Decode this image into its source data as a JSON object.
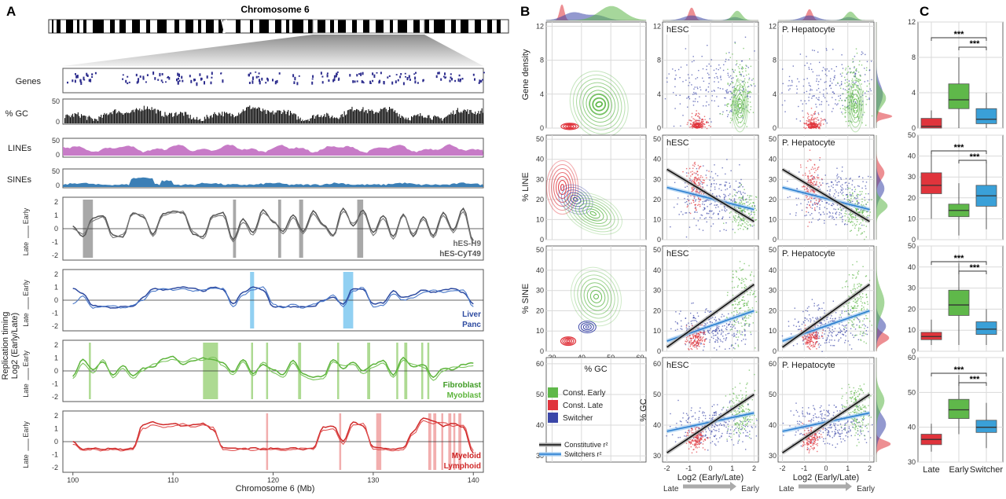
{
  "figure": {
    "panel_letters": [
      "A",
      "B",
      "C"
    ],
    "colors": {
      "const_early": "#5fb84a",
      "const_late": "#e0343c",
      "switcher": "#3b46a8",
      "switcher_light": "#3aa0d8",
      "constitutive_line": "#111111",
      "switchers_line": "#2b7fd0",
      "gray_track": "#555555",
      "lines_fill": "#c77bc7",
      "sines_fill": "#3b7fb6",
      "blue_track": "#2d4aa0",
      "green_track": "#5cb43a",
      "red_track": "#d02a2a"
    }
  },
  "panelA": {
    "title": "Chromosome 6",
    "tracks": {
      "genes": "Genes",
      "gc": "% GC",
      "lines": "LINEs",
      "sines": "SINEs"
    },
    "gc_ticks": [
      "0",
      "50"
    ],
    "lines_ticks": [
      "0",
      "50"
    ],
    "sines_ticks": [
      "0",
      "50"
    ],
    "rt_ticks": [
      "2",
      "1",
      "0",
      "-1",
      "-2"
    ],
    "rt_axis": {
      "early": "Early",
      "late": "Late"
    },
    "rt_ylabel_1": "Replication timing",
    "rt_ylabel_2": "Log2 (Early/Late)",
    "rt_panels": [
      {
        "legend": [
          "hES-H9",
          "hES-CyT49"
        ]
      },
      {
        "legend": [
          "Liver",
          "Panc"
        ]
      },
      {
        "legend": [
          "Fibroblast",
          "Myoblast"
        ]
      },
      {
        "legend": [
          "Myeloid",
          "Lymphoid"
        ]
      }
    ],
    "x_ticks": [
      "100",
      "110",
      "120",
      "130",
      "140"
    ],
    "xlabel": "Chromosome 6 (Mb)"
  },
  "panelB": {
    "facet_labels": [
      "hESC",
      "P. Hepatocyte"
    ],
    "row_ylabels": [
      "Gene density",
      "% LINE",
      "% SINE",
      "% GC"
    ],
    "col1_xlabel": "% GC",
    "xlabel": "Log2 (Early/Late)",
    "arrow_late": "Late",
    "arrow_early": "Early",
    "col1_xticks": [
      "30",
      "40",
      "50",
      "60"
    ],
    "rt_xticks": [
      "-2",
      "-1",
      "0",
      "1",
      "2"
    ],
    "row_yticks": [
      [
        "0",
        "4",
        "8",
        "12"
      ],
      [
        "0",
        "10",
        "20",
        "30",
        "40",
        "50"
      ],
      [
        "0",
        "10",
        "20",
        "30",
        "40",
        "50"
      ],
      [
        "30",
        "40",
        "50",
        "60"
      ]
    ],
    "legend": [
      "Const. Early",
      "Const. Late",
      "Switcher"
    ],
    "line_legend": [
      "Constitutive r²",
      "Switchers r²"
    ]
  },
  "panelC": {
    "categories": [
      "Late",
      "Early",
      "Switcher"
    ],
    "significance": "***"
  },
  "chart_data": [
    {
      "type": "line",
      "title": "Chromosome 6",
      "xlabel": "Chromosome 6 (Mb)",
      "ylabel": "Replication timing Log2 (Early/Late)",
      "xlim": [
        99,
        141
      ],
      "ylim": [
        -2,
        2
      ],
      "x": [
        100,
        101,
        102,
        103,
        104,
        105,
        106,
        107,
        108,
        109,
        110,
        111,
        112,
        113,
        114,
        115,
        116,
        117,
        118,
        119,
        120,
        121,
        122,
        123,
        124,
        125,
        126,
        127,
        128,
        129,
        130,
        131,
        132,
        133,
        134,
        135,
        136,
        137,
        138,
        139,
        140
      ],
      "series": [
        {
          "name": "hES-H9",
          "values": [
            0.2,
            -0.6,
            0.8,
            1.0,
            -0.5,
            -0.6,
            1.2,
            0.9,
            -0.4,
            1.1,
            1.3,
            1.2,
            -0.4,
            -0.6,
            1.0,
            1.2,
            -0.8,
            0.7,
            -0.3,
            1.4,
            0.5,
            -0.2,
            1.0,
            -0.2,
            1.3,
            0.3,
            -0.5,
            1.5,
            0.2,
            1.4,
            -0.3,
            1.0,
            -0.6,
            1.1,
            -0.6,
            0.9,
            -0.5,
            1.2,
            -0.1,
            1.5,
            -0.9
          ]
        },
        {
          "name": "hES-CyT49",
          "values": [
            0.0,
            -0.4,
            0.6,
            0.9,
            -0.7,
            -0.4,
            1.1,
            1.0,
            -0.6,
            1.0,
            1.2,
            1.3,
            -0.2,
            -0.8,
            0.9,
            1.0,
            -1.0,
            0.5,
            -0.5,
            1.2,
            0.6,
            -0.4,
            0.8,
            -0.4,
            1.1,
            0.2,
            -0.6,
            1.3,
            0.4,
            1.2,
            -0.5,
            0.8,
            -0.8,
            1.0,
            -0.4,
            0.7,
            -0.7,
            1.0,
            -0.3,
            1.3,
            -1.1
          ]
        },
        {
          "name": "Liver",
          "values": [
            0.9,
            0.5,
            -0.4,
            -0.5,
            -0.6,
            -0.5,
            -0.5,
            0.2,
            0.9,
            0.8,
            0.9,
            1.0,
            0.9,
            0.7,
            1.0,
            0.8,
            -0.3,
            0.6,
            1.0,
            0.8,
            -0.5,
            -0.5,
            -0.5,
            -0.5,
            -0.5,
            0.0,
            0.2,
            -0.3,
            0.9,
            0.8,
            -0.3,
            -0.2,
            0.7,
            0.2,
            0.4,
            0.8,
            0.6,
            0.8,
            0.9,
            0.6,
            -0.3
          ]
        },
        {
          "name": "Panc",
          "values": [
            -0.3,
            0.3,
            -0.6,
            -0.5,
            -0.4,
            -0.6,
            -0.4,
            0.0,
            0.7,
            0.9,
            0.8,
            0.9,
            0.7,
            0.8,
            0.9,
            0.9,
            -0.5,
            0.4,
            0.8,
            1.0,
            -0.3,
            -0.6,
            -0.3,
            -0.6,
            -0.3,
            -0.1,
            0.4,
            -0.5,
            0.7,
            1.0,
            -0.5,
            -0.4,
            0.5,
            0.0,
            0.2,
            0.6,
            0.8,
            0.6,
            0.7,
            0.8,
            -0.5
          ]
        },
        {
          "name": "Fibroblast",
          "values": [
            -0.4,
            0.9,
            0.1,
            0.7,
            -0.3,
            0.4,
            -0.4,
            0.2,
            0.3,
            0.9,
            1.1,
            0.5,
            0.8,
            1.0,
            0.9,
            0.6,
            -0.1,
            0.9,
            -0.2,
            0.5,
            0.1,
            -0.3,
            0.8,
            -0.2,
            -0.5,
            -0.4,
            0.9,
            0.2,
            0.7,
            0.0,
            0.5,
            0.8,
            -0.3,
            1.0,
            0.3,
            0.5,
            -0.5,
            0.2,
            0.1,
            0.5,
            0.6
          ]
        },
        {
          "name": "Myoblast",
          "values": [
            -0.6,
            0.6,
            -0.2,
            0.9,
            -0.5,
            0.2,
            -0.6,
            0.0,
            0.5,
            0.7,
            0.9,
            0.7,
            1.0,
            0.8,
            1.1,
            0.4,
            -0.3,
            0.7,
            -0.4,
            0.7,
            -0.1,
            -0.5,
            0.6,
            -0.4,
            -0.7,
            -0.6,
            0.7,
            0.4,
            0.5,
            -0.2,
            0.3,
            0.6,
            -0.5,
            0.8,
            0.5,
            0.3,
            -0.7,
            0.0,
            0.3,
            0.3,
            0.4
          ]
        },
        {
          "name": "Myeloid",
          "values": [
            0.0,
            -0.6,
            -0.5,
            -0.6,
            -0.5,
            -0.6,
            -0.5,
            1.3,
            1.5,
            1.3,
            1.4,
            1.2,
            1.3,
            1.4,
            0.9,
            -0.5,
            -0.5,
            -0.6,
            -0.5,
            -0.6,
            -0.5,
            -0.6,
            -0.5,
            -0.6,
            -0.5,
            1.1,
            1.2,
            0.0,
            1.5,
            1.2,
            -0.4,
            -0.5,
            -0.6,
            -0.5,
            0.8,
            1.8,
            1.6,
            1.2,
            1.4,
            1.1,
            -0.9
          ]
        },
        {
          "name": "Lymphoid",
          "values": [
            -0.2,
            -0.7,
            -0.6,
            -0.7,
            -0.6,
            -0.7,
            -0.6,
            1.0,
            1.3,
            1.1,
            1.2,
            1.4,
            1.1,
            1.3,
            1.1,
            -0.6,
            -0.7,
            -0.5,
            -0.7,
            -0.5,
            -0.6,
            -0.7,
            -0.6,
            -0.5,
            -0.6,
            0.9,
            1.0,
            -0.2,
            1.3,
            1.4,
            -0.6,
            -0.6,
            -0.7,
            -0.6,
            0.6,
            1.6,
            1.4,
            1.5,
            1.2,
            1.3,
            -0.7
          ]
        }
      ]
    },
    {
      "type": "scatter",
      "facets": [
        "hESC",
        "P. Hepatocyte"
      ],
      "xlabel": "Log2 (Early/Late)",
      "xlim": [
        -2,
        2
      ],
      "series": [
        "Const. Early",
        "Const. Late",
        "Switcher"
      ],
      "regression": [
        {
          "row": "% LINE",
          "constitutive": [
            [
              -2,
              35
            ],
            [
              2,
              9
            ]
          ],
          "switchers": [
            [
              -2,
              26
            ],
            [
              2,
              15
            ]
          ]
        },
        {
          "row": "% SINE",
          "constitutive": [
            [
              -2,
              2
            ],
            [
              2,
              33
            ]
          ],
          "switchers": [
            [
              -2,
              5
            ],
            [
              2,
              20
            ]
          ]
        },
        {
          "row": "% GC",
          "constitutive": [
            [
              -2,
              31
            ],
            [
              2,
              50
            ]
          ],
          "switchers": [
            [
              -2,
              38
            ],
            [
              2,
              44
            ]
          ]
        }
      ]
    },
    {
      "type": "box",
      "categories": [
        "Late",
        "Early",
        "Switcher"
      ],
      "rows": [
        {
          "ylabel": "Gene density",
          "ylim": [
            0,
            12
          ],
          "yticks": [
            0,
            4,
            8,
            12
          ],
          "boxes": [
            [
              0,
              0,
              0.2,
              1.1,
              2
            ],
            [
              0,
              2.2,
              3.2,
              5,
              8
            ],
            [
              0,
              0.5,
              1,
              2.2,
              4
            ]
          ]
        },
        {
          "ylabel": "% LINE",
          "ylim": [
            0,
            50
          ],
          "yticks": [
            0,
            10,
            20,
            30,
            40,
            50
          ],
          "boxes": [
            [
              10,
              22,
              26,
              32,
              42
            ],
            [
              2,
              11,
              14,
              17,
              27
            ],
            [
              5,
              16,
              21,
              26,
              37
            ]
          ]
        },
        {
          "ylabel": "% SINE",
          "ylim": [
            0,
            50
          ],
          "yticks": [
            0,
            10,
            20,
            30,
            40,
            50
          ],
          "boxes": [
            [
              3,
              5.5,
              7,
              9,
              15
            ],
            [
              3,
              17,
              22,
              29,
              42
            ],
            [
              3,
              8,
              10.5,
              14,
              20
            ]
          ]
        },
        {
          "ylabel": "% GC",
          "ylim": [
            30,
            60
          ],
          "yticks": [
            30,
            40,
            50,
            60
          ],
          "boxes": [
            [
              33,
              35,
              36.5,
              38,
              41
            ],
            [
              38,
              42.5,
              45,
              48,
              55
            ],
            [
              34,
              38.5,
              40,
              42,
              47
            ]
          ]
        }
      ]
    }
  ]
}
